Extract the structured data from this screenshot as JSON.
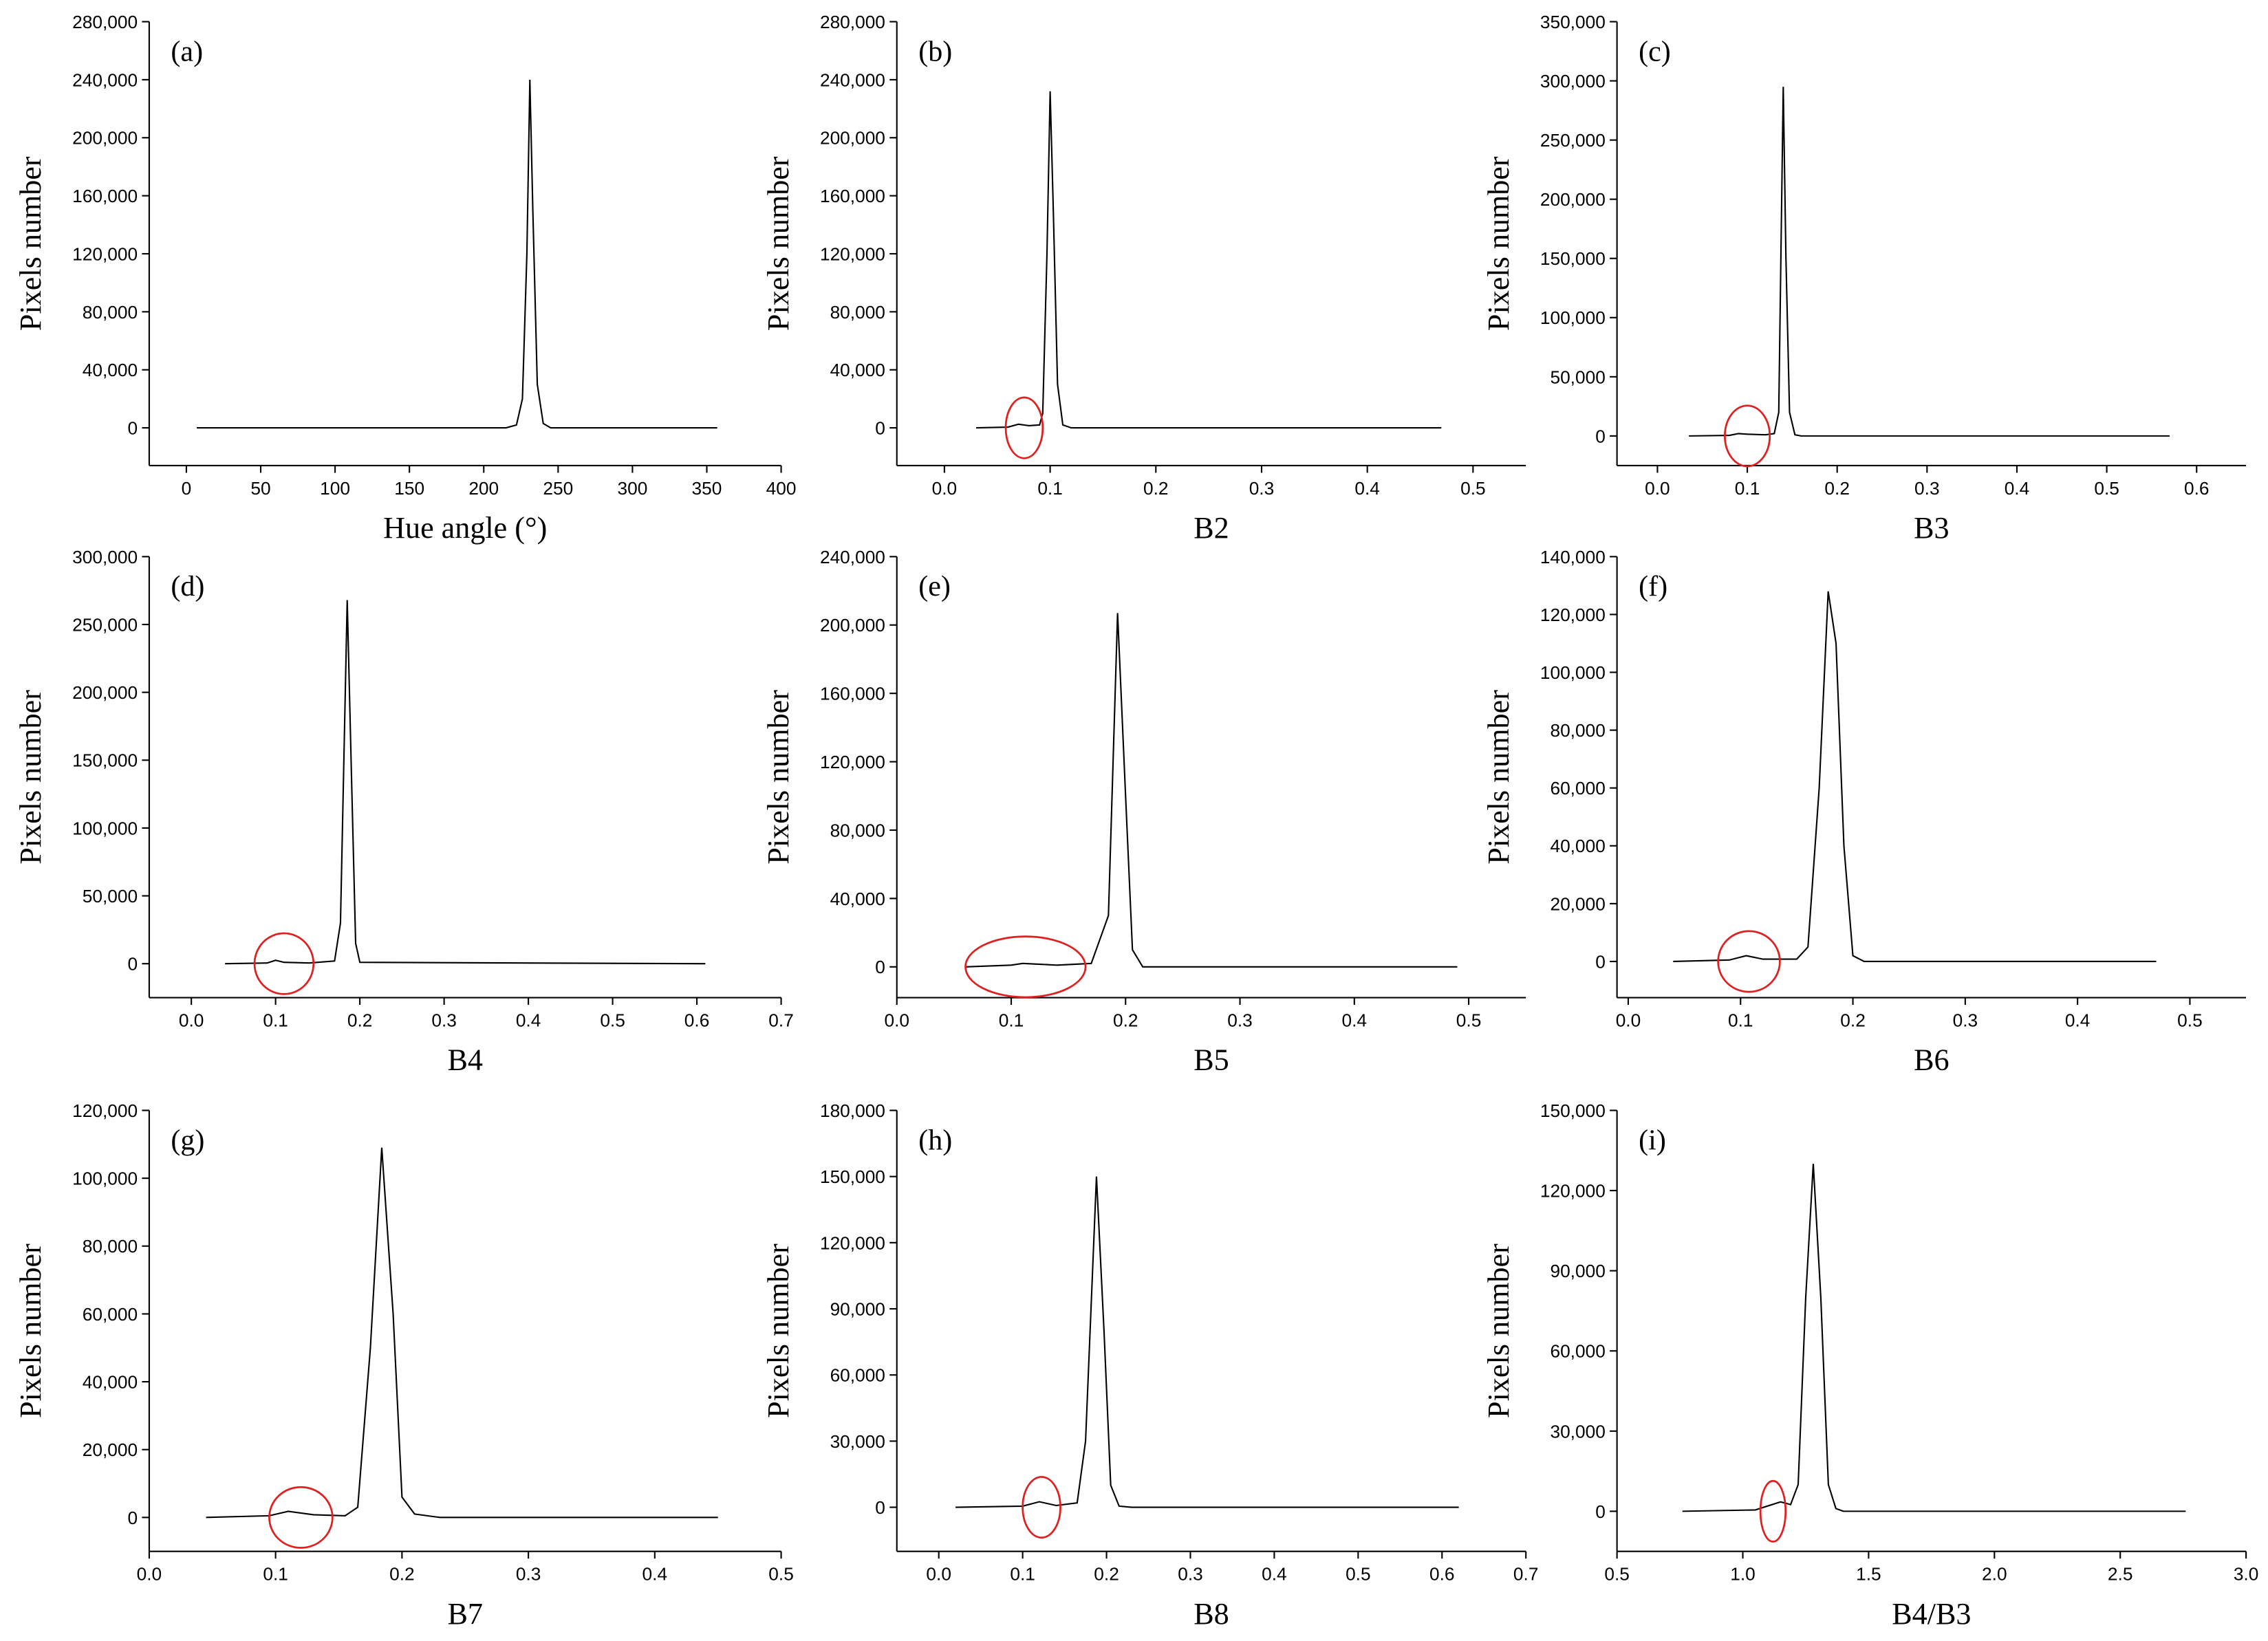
{
  "chart_data": [
    {
      "type": "line",
      "panel": "(a)",
      "xlabel": "Hue angle  (°)",
      "ylabel": "Pixels number",
      "color": "#000000",
      "x": [
        7,
        215,
        222,
        226,
        229,
        231,
        233,
        236,
        240,
        245,
        357
      ],
      "values": [
        0,
        0,
        2000,
        20000,
        120000,
        240000,
        150000,
        30000,
        3000,
        0,
        0
      ],
      "xlim": [
        -25,
        400
      ],
      "ylim": [
        -26000,
        280000
      ],
      "xticks": [
        0,
        50,
        100,
        150,
        200,
        250,
        300,
        350,
        400
      ],
      "yticks": [
        0,
        {
          "value": 40000,
          "label": "40,000"
        },
        {
          "value": 80000,
          "label": "80,000"
        },
        {
          "value": 120000,
          "label": "120,000"
        },
        {
          "value": 160000,
          "label": "160,000"
        },
        {
          "value": 200000,
          "label": "200,000"
        },
        {
          "value": 240000,
          "label": "240,000"
        },
        {
          "value": 280000,
          "label": "280,000"
        }
      ]
    },
    {
      "type": "line",
      "panel": "(b)",
      "xlabel": "B2",
      "ylabel": "Pixels number",
      "color": "#000000",
      "x": [
        0.03,
        0.06,
        0.07,
        0.08,
        0.09,
        0.093,
        0.097,
        0.1,
        0.103,
        0.107,
        0.112,
        0.12,
        0.47
      ],
      "values": [
        0,
        500,
        2500,
        1500,
        2000,
        10000,
        120000,
        232000,
        150000,
        30000,
        2000,
        0,
        0
      ],
      "xlim": [
        -0.045,
        0.55
      ],
      "ylim": [
        -26000,
        280000
      ],
      "xticks": [
        {
          "value": 0,
          "label": "0.0"
        },
        0.1,
        0.2,
        0.3,
        0.4,
        0.5
      ],
      "yticks": [
        0,
        {
          "value": 40000,
          "label": "40,000"
        },
        {
          "value": 80000,
          "label": "80,000"
        },
        {
          "value": 120000,
          "label": "120,000"
        },
        {
          "value": 160000,
          "label": "160,000"
        },
        {
          "value": 200000,
          "label": "200,000"
        },
        {
          "value": 240000,
          "label": "240,000"
        },
        {
          "value": 280000,
          "label": "280,000"
        }
      ],
      "highlight_x": [
        0.058,
        0.093
      ],
      "highlight_color": "#e02020"
    },
    {
      "type": "line",
      "panel": "(c)",
      "xlabel": "B3",
      "ylabel": "Pixels number",
      "color": "#000000",
      "x": [
        0.035,
        0.08,
        0.09,
        0.1,
        0.12,
        0.13,
        0.135,
        0.14,
        0.143,
        0.147,
        0.153,
        0.16,
        0.57
      ],
      "values": [
        0,
        500,
        2000,
        1500,
        1000,
        2000,
        20000,
        295000,
        150000,
        20000,
        1000,
        0,
        0
      ],
      "xlim": [
        -0.045,
        0.655
      ],
      "ylim": [
        -25000,
        350000
      ],
      "xticks": [
        {
          "value": 0,
          "label": "0.0"
        },
        0.1,
        0.2,
        0.3,
        0.4,
        0.5,
        0.6
      ],
      "yticks": [
        0,
        {
          "value": 50000,
          "label": "50,000"
        },
        {
          "value": 100000,
          "label": "100,000"
        },
        {
          "value": 150000,
          "label": "150,000"
        },
        {
          "value": 200000,
          "label": "200,000"
        },
        {
          "value": 250000,
          "label": "250,000"
        },
        {
          "value": 300000,
          "label": "300,000"
        },
        {
          "value": 350000,
          "label": "350,000"
        }
      ],
      "highlight_x": [
        0.075,
        0.125
      ],
      "highlight_color": "#e02020"
    },
    {
      "type": "line",
      "panel": "(d)",
      "xlabel": "B4",
      "ylabel": "Pixels number",
      "color": "#000000",
      "x": [
        0.04,
        0.09,
        0.1,
        0.11,
        0.14,
        0.17,
        0.177,
        0.185,
        0.19,
        0.195,
        0.2,
        0.61
      ],
      "values": [
        0,
        500,
        2500,
        1000,
        500,
        2000,
        30000,
        268000,
        140000,
        15000,
        1000,
        0
      ],
      "xlim": [
        -0.05,
        0.7
      ],
      "ylim": [
        -25000,
        300000
      ],
      "xticks": [
        {
          "value": 0,
          "label": "0.0"
        },
        0.1,
        0.2,
        0.3,
        0.4,
        0.5,
        0.6,
        0.7
      ],
      "yticks": [
        0,
        {
          "value": 50000,
          "label": "50,000"
        },
        {
          "value": 100000,
          "label": "100,000"
        },
        {
          "value": 150000,
          "label": "150,000"
        },
        {
          "value": 200000,
          "label": "200,000"
        },
        {
          "value": 250000,
          "label": "250,000"
        },
        {
          "value": 300000,
          "label": "300,000"
        }
      ],
      "highlight_x": [
        0.075,
        0.145
      ],
      "highlight_color": "#e02020"
    },
    {
      "type": "line",
      "panel": "(e)",
      "xlabel": "B5",
      "ylabel": "Pixels number",
      "color": "#000000",
      "x": [
        0.06,
        0.1,
        0.11,
        0.14,
        0.17,
        0.185,
        0.193,
        0.2,
        0.206,
        0.215,
        0.49
      ],
      "values": [
        0,
        1000,
        2000,
        1000,
        2000,
        30000,
        207000,
        100000,
        10000,
        0,
        0
      ],
      "xlim": [
        0,
        0.55
      ],
      "ylim": [
        -18000,
        240000
      ],
      "xticks": [
        {
          "value": 0,
          "label": "0.0"
        },
        0.1,
        0.2,
        0.3,
        0.4,
        0.5
      ],
      "yticks": [
        0,
        {
          "value": 40000,
          "label": "40,000"
        },
        {
          "value": 80000,
          "label": "80,000"
        },
        {
          "value": 120000,
          "label": "120,000"
        },
        {
          "value": 160000,
          "label": "160,000"
        },
        {
          "value": 200000,
          "label": "200,000"
        },
        {
          "value": 240000,
          "label": "240,000"
        }
      ],
      "highlight_x": [
        0.06,
        0.165
      ],
      "highlight_color": "#e02020"
    },
    {
      "type": "line",
      "panel": "(f)",
      "xlabel": "B6",
      "ylabel": "Pixels number",
      "color": "#000000",
      "x": [
        0.04,
        0.09,
        0.105,
        0.12,
        0.15,
        0.16,
        0.17,
        0.178,
        0.185,
        0.192,
        0.2,
        0.21,
        0.47
      ],
      "values": [
        0,
        500,
        2000,
        800,
        800,
        5000,
        60000,
        128000,
        110000,
        40000,
        2000,
        0,
        0
      ],
      "xlim": [
        -0.01,
        0.55
      ],
      "ylim": [
        -12500,
        140000
      ],
      "xticks": [
        {
          "value": 0,
          "label": "0.0"
        },
        0.1,
        0.2,
        0.3,
        0.4,
        0.5
      ],
      "yticks": [
        0,
        {
          "value": 20000,
          "label": "20,000"
        },
        {
          "value": 40000,
          "label": "40,000"
        },
        {
          "value": 60000,
          "label": "60,000"
        },
        {
          "value": 80000,
          "label": "80,000"
        },
        {
          "value": 100000,
          "label": "100,000"
        },
        {
          "value": 120000,
          "label": "120,000"
        },
        {
          "value": 140000,
          "label": "140,000"
        }
      ],
      "highlight_x": [
        0.08,
        0.135
      ],
      "highlight_color": "#e02020"
    },
    {
      "type": "line",
      "panel": "(g)",
      "xlabel": "B7",
      "ylabel": "Pixels number",
      "color": "#000000",
      "x": [
        0.045,
        0.095,
        0.11,
        0.13,
        0.155,
        0.165,
        0.175,
        0.184,
        0.193,
        0.2,
        0.21,
        0.23,
        0.45
      ],
      "values": [
        0,
        500,
        1800,
        800,
        500,
        3000,
        50000,
        109000,
        60000,
        6000,
        1000,
        0,
        0
      ],
      "xlim": [
        0,
        0.5
      ],
      "ylim": [
        -10000,
        120000
      ],
      "xticks": [
        {
          "value": 0,
          "label": "0.0"
        },
        0.1,
        0.2,
        0.3,
        0.4,
        0.5
      ],
      "yticks": [
        0,
        {
          "value": 20000,
          "label": "20,000"
        },
        {
          "value": 40000,
          "label": "40,000"
        },
        {
          "value": 60000,
          "label": "60,000"
        },
        {
          "value": 80000,
          "label": "80,000"
        },
        {
          "value": 100000,
          "label": "100,000"
        },
        {
          "value": 120000,
          "label": "120,000"
        }
      ],
      "highlight_x": [
        0.095,
        0.145
      ],
      "highlight_color": "#e02020"
    },
    {
      "type": "line",
      "panel": "(h)",
      "xlabel": "B8",
      "ylabel": "Pixels number",
      "color": "#000000",
      "x": [
        0.02,
        0.1,
        0.12,
        0.14,
        0.165,
        0.175,
        0.188,
        0.197,
        0.205,
        0.215,
        0.23,
        0.62
      ],
      "values": [
        0,
        500,
        2500,
        800,
        2000,
        30000,
        150000,
        80000,
        10000,
        500,
        0,
        0
      ],
      "xlim": [
        -0.05,
        0.7
      ],
      "ylim": [
        -20000,
        180000
      ],
      "xticks": [
        {
          "value": 0,
          "label": "0.0"
        },
        0.1,
        0.2,
        0.3,
        0.4,
        0.5,
        0.6,
        0.7
      ],
      "yticks": [
        0,
        {
          "value": 30000,
          "label": "30,000"
        },
        {
          "value": 60000,
          "label": "60,000"
        },
        {
          "value": 90000,
          "label": "90,000"
        },
        {
          "value": 120000,
          "label": "120,000"
        },
        {
          "value": 150000,
          "label": "150,000"
        },
        {
          "value": 180000,
          "label": "180,000"
        }
      ],
      "highlight_x": [
        0.1,
        0.145
      ],
      "highlight_color": "#e02020"
    },
    {
      "type": "line",
      "panel": "(i)",
      "xlabel": "B4/B3",
      "ylabel": "Pixels number",
      "color": "#000000",
      "x": [
        0.76,
        1.05,
        1.15,
        1.19,
        1.22,
        1.25,
        1.28,
        1.31,
        1.34,
        1.37,
        1.4,
        2.76
      ],
      "values": [
        0,
        500,
        3500,
        2500,
        10000,
        80000,
        130000,
        80000,
        10000,
        1000,
        0,
        0
      ],
      "xlim": [
        0.5,
        3.0
      ],
      "ylim": [
        -15000,
        150000
      ],
      "xticks": [
        0.5,
        {
          "value": 1,
          "label": "1.0"
        },
        1.5,
        {
          "value": 2,
          "label": "2.0"
        },
        2.5,
        {
          "value": 3,
          "label": "3.0"
        }
      ],
      "yticks": [
        0,
        {
          "value": 30000,
          "label": "30,000"
        },
        {
          "value": 60000,
          "label": "60,000"
        },
        {
          "value": 90000,
          "label": "90,000"
        },
        {
          "value": 120000,
          "label": "120,000"
        },
        {
          "value": 150000,
          "label": "150,000"
        }
      ],
      "highlight_x": [
        1.07,
        1.17
      ],
      "highlight_color": "#e02020"
    }
  ]
}
